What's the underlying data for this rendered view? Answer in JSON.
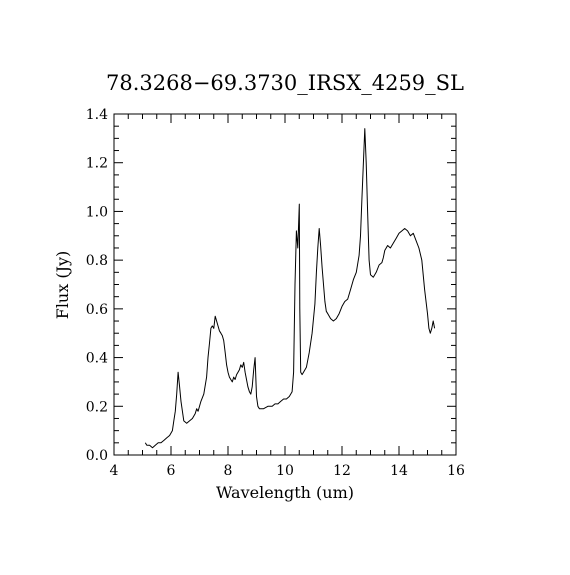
{
  "chart_data": {
    "type": "line",
    "title": "78.3268−69.3730_IRSX_4259_SL",
    "xlabel": "Wavelength (um)",
    "ylabel": "Flux (Jy)",
    "xlim": [
      4,
      16
    ],
    "ylim": [
      0,
      1.4
    ],
    "x_ticks": [
      4,
      6,
      8,
      10,
      12,
      14,
      16
    ],
    "x_tick_labels": [
      "4",
      "6",
      "8",
      "10",
      "12",
      "14",
      "16"
    ],
    "y_ticks": [
      0,
      0.2,
      0.4,
      0.6,
      0.8,
      1.0,
      1.2,
      1.4
    ],
    "y_tick_labels": [
      "0.0",
      "0.2",
      "0.4",
      "0.6",
      "0.8",
      "1.0",
      "1.2",
      "1.4"
    ],
    "x_minor_step": 0.5,
    "y_minor_step": 0.05,
    "grid": false,
    "line_color": "#000000",
    "series": [
      {
        "x": [
          5.1,
          5.15,
          5.25,
          5.35,
          5.45,
          5.55,
          5.65,
          5.75,
          5.85,
          5.95,
          6.05,
          6.1,
          6.15,
          6.2,
          6.25,
          6.3,
          6.35,
          6.4,
          6.45,
          6.55,
          6.65,
          6.75,
          6.85,
          6.9,
          6.95,
          7.05,
          7.15,
          7.25,
          7.3,
          7.35,
          7.4,
          7.45,
          7.5,
          7.55,
          7.6,
          7.65,
          7.7,
          7.75,
          7.8,
          7.85,
          7.9,
          7.95,
          8.0,
          8.05,
          8.1,
          8.15,
          8.2,
          8.25,
          8.3,
          8.35,
          8.4,
          8.45,
          8.5,
          8.55,
          8.6,
          8.65,
          8.7,
          8.75,
          8.8,
          8.85,
          8.9,
          8.95,
          9.0,
          9.05,
          9.1,
          9.15,
          9.25,
          9.4,
          9.55,
          9.65,
          9.75,
          9.85,
          9.95,
          10.05,
          10.15,
          10.25,
          10.3,
          10.35,
          10.4,
          10.45,
          10.5,
          10.52,
          10.55,
          10.6,
          10.65,
          10.75,
          10.85,
          10.95,
          11.05,
          11.1,
          11.15,
          11.2,
          11.25,
          11.3,
          11.35,
          11.4,
          11.45,
          11.5,
          11.6,
          11.7,
          11.8,
          11.9,
          12.0,
          12.1,
          12.2,
          12.3,
          12.4,
          12.5,
          12.6,
          12.65,
          12.7,
          12.75,
          12.8,
          12.85,
          12.9,
          12.95,
          13.0,
          13.1,
          13.2,
          13.3,
          13.4,
          13.45,
          13.5,
          13.55,
          13.6,
          13.7,
          13.8,
          13.9,
          14.0,
          14.1,
          14.2,
          14.3,
          14.4,
          14.5,
          14.6,
          14.7,
          14.8,
          14.9,
          15.0,
          15.05,
          15.1,
          15.15,
          15.2,
          15.25
        ],
        "y": [
          0.05,
          0.04,
          0.04,
          0.03,
          0.04,
          0.05,
          0.05,
          0.06,
          0.07,
          0.08,
          0.1,
          0.14,
          0.18,
          0.25,
          0.34,
          0.28,
          0.22,
          0.18,
          0.14,
          0.13,
          0.14,
          0.15,
          0.17,
          0.19,
          0.18,
          0.22,
          0.25,
          0.32,
          0.4,
          0.46,
          0.52,
          0.53,
          0.52,
          0.57,
          0.55,
          0.53,
          0.51,
          0.5,
          0.49,
          0.47,
          0.42,
          0.37,
          0.34,
          0.32,
          0.31,
          0.3,
          0.32,
          0.31,
          0.33,
          0.34,
          0.35,
          0.37,
          0.36,
          0.38,
          0.34,
          0.31,
          0.28,
          0.26,
          0.25,
          0.28,
          0.35,
          0.4,
          0.24,
          0.2,
          0.19,
          0.19,
          0.19,
          0.2,
          0.2,
          0.21,
          0.21,
          0.22,
          0.23,
          0.23,
          0.24,
          0.26,
          0.34,
          0.7,
          0.92,
          0.85,
          1.03,
          0.6,
          0.34,
          0.33,
          0.34,
          0.36,
          0.42,
          0.5,
          0.62,
          0.75,
          0.85,
          0.93,
          0.86,
          0.77,
          0.7,
          0.63,
          0.59,
          0.58,
          0.56,
          0.55,
          0.56,
          0.58,
          0.61,
          0.63,
          0.64,
          0.68,
          0.72,
          0.75,
          0.82,
          0.9,
          1.05,
          1.2,
          1.34,
          1.2,
          1.0,
          0.8,
          0.74,
          0.73,
          0.75,
          0.78,
          0.79,
          0.81,
          0.84,
          0.85,
          0.86,
          0.85,
          0.87,
          0.89,
          0.91,
          0.92,
          0.93,
          0.92,
          0.9,
          0.91,
          0.88,
          0.85,
          0.8,
          0.68,
          0.58,
          0.52,
          0.5,
          0.52,
          0.55,
          0.52
        ]
      }
    ]
  }
}
